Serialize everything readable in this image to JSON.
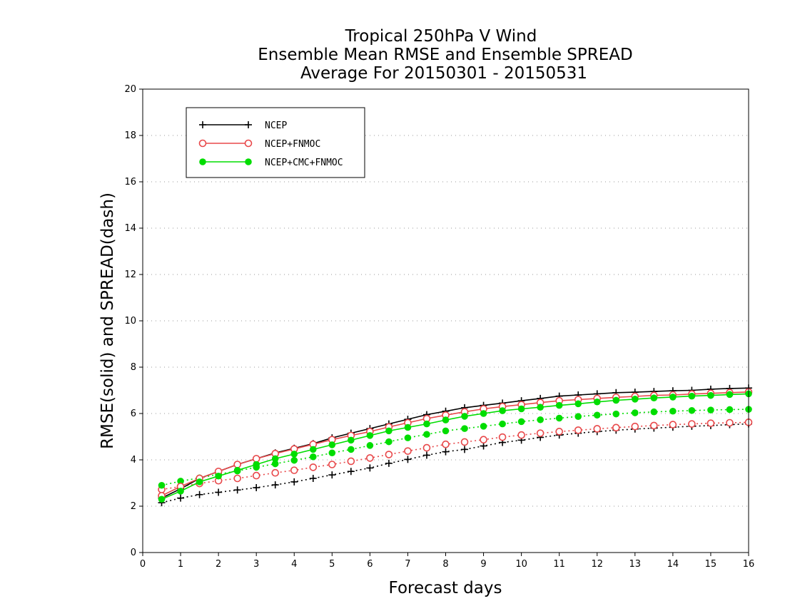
{
  "chart_data": {
    "type": "line",
    "title_lines": [
      "Tropical 250hPa V Wind",
      "Ensemble Mean RMSE and Ensemble SPREAD",
      "Average For 20150301 - 20150531"
    ],
    "xlabel": "Forecast days",
    "ylabel": "RMSE(solid) and SPREAD(dash)",
    "xlim": [
      0,
      16
    ],
    "ylim": [
      0,
      20
    ],
    "xticks": [
      0,
      1,
      2,
      3,
      4,
      5,
      6,
      7,
      8,
      9,
      10,
      11,
      12,
      13,
      14,
      15,
      16
    ],
    "yticks": [
      0,
      2,
      4,
      6,
      8,
      10,
      12,
      14,
      16,
      18,
      20
    ],
    "grid": "horizontal dotted",
    "legend_position": "top-left",
    "x": [
      0.5,
      1,
      1.5,
      2,
      2.5,
      3,
      3.5,
      4,
      4.5,
      5,
      5.5,
      6,
      6.5,
      7,
      7.5,
      8,
      8.5,
      9,
      9.5,
      10,
      10.5,
      11,
      11.5,
      12,
      12.5,
      13,
      13.5,
      14,
      14.5,
      15,
      15.5,
      16
    ],
    "series": [
      {
        "name": "NCEP",
        "metric": "RMSE",
        "style": "solid",
        "marker": "plus",
        "color": "#000000",
        "values": [
          2.35,
          2.75,
          3.2,
          3.5,
          3.8,
          4.05,
          4.3,
          4.5,
          4.7,
          4.95,
          5.15,
          5.35,
          5.55,
          5.75,
          5.95,
          6.1,
          6.25,
          6.35,
          6.45,
          6.55,
          6.65,
          6.75,
          6.8,
          6.85,
          6.9,
          6.92,
          6.95,
          6.98,
          7.0,
          7.05,
          7.08,
          7.1
        ]
      },
      {
        "name": "NCEP+FNMOC",
        "metric": "RMSE",
        "style": "solid",
        "marker": "open-circle",
        "color": "#e8484a",
        "values": [
          2.45,
          2.85,
          3.2,
          3.5,
          3.8,
          4.05,
          4.27,
          4.47,
          4.67,
          4.87,
          5.05,
          5.22,
          5.42,
          5.6,
          5.78,
          5.93,
          6.07,
          6.2,
          6.3,
          6.38,
          6.47,
          6.55,
          6.6,
          6.65,
          6.7,
          6.74,
          6.78,
          6.8,
          6.84,
          6.87,
          6.9,
          6.93
        ]
      },
      {
        "name": "NCEP+CMC+FNMOC",
        "metric": "RMSE",
        "style": "solid",
        "marker": "filled-circle",
        "color": "#00dd00",
        "values": [
          2.3,
          2.65,
          3.05,
          3.3,
          3.55,
          3.8,
          4.05,
          4.25,
          4.45,
          4.65,
          4.85,
          5.05,
          5.25,
          5.4,
          5.55,
          5.72,
          5.88,
          6.0,
          6.12,
          6.2,
          6.27,
          6.35,
          6.42,
          6.5,
          6.57,
          6.62,
          6.67,
          6.71,
          6.75,
          6.78,
          6.82,
          6.85
        ]
      },
      {
        "name": "NCEP",
        "metric": "SPREAD",
        "style": "dotted",
        "marker": "plus",
        "color": "#000000",
        "values": [
          2.15,
          2.35,
          2.5,
          2.6,
          2.7,
          2.8,
          2.92,
          3.05,
          3.2,
          3.35,
          3.5,
          3.65,
          3.85,
          4.02,
          4.2,
          4.35,
          4.45,
          4.6,
          4.75,
          4.85,
          4.97,
          5.07,
          5.15,
          5.22,
          5.28,
          5.33,
          5.37,
          5.41,
          5.45,
          5.48,
          5.52,
          5.55
        ]
      },
      {
        "name": "NCEP+FNMOC",
        "metric": "SPREAD",
        "style": "dotted",
        "marker": "open-circle",
        "color": "#e8484a",
        "values": [
          2.72,
          2.85,
          2.98,
          3.1,
          3.2,
          3.32,
          3.44,
          3.55,
          3.68,
          3.8,
          3.94,
          4.08,
          4.23,
          4.38,
          4.52,
          4.67,
          4.77,
          4.87,
          4.98,
          5.07,
          5.15,
          5.22,
          5.28,
          5.34,
          5.39,
          5.44,
          5.48,
          5.52,
          5.55,
          5.58,
          5.6,
          5.62
        ]
      },
      {
        "name": "NCEP+CMC+FNMOC",
        "metric": "SPREAD",
        "style": "dotted",
        "marker": "filled-circle",
        "color": "#00dd00",
        "values": [
          2.9,
          3.08,
          3.22,
          3.38,
          3.52,
          3.68,
          3.83,
          3.98,
          4.13,
          4.3,
          4.45,
          4.62,
          4.78,
          4.95,
          5.1,
          5.25,
          5.35,
          5.45,
          5.55,
          5.65,
          5.73,
          5.8,
          5.87,
          5.93,
          5.98,
          6.03,
          6.07,
          6.1,
          6.13,
          6.15,
          6.17,
          6.18
        ]
      }
    ],
    "legend": [
      {
        "label": "NCEP",
        "marker": "plus",
        "color": "#000000"
      },
      {
        "label": "NCEP+FNMOC",
        "marker": "open-circle",
        "color": "#e8484a"
      },
      {
        "label": "NCEP+CMC+FNMOC",
        "marker": "filled-circle",
        "color": "#00dd00"
      }
    ]
  }
}
